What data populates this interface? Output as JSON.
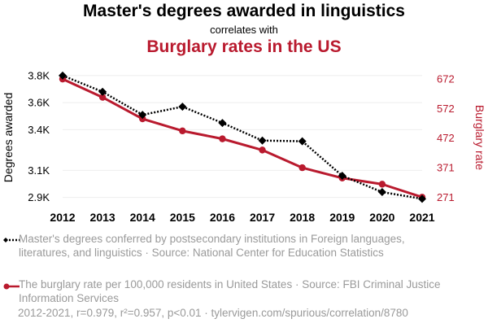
{
  "header": {
    "title": "Master's degrees awarded in linguistics",
    "subtitle": "correlates with",
    "title2": "Burglary rates in the US"
  },
  "colors": {
    "series1": "#000000",
    "series2": "#b91a2e",
    "grid": "#eeeeee",
    "legend_text": "#9a9a9a"
  },
  "chart_data": {
    "type": "line",
    "title": "Master's degrees awarded in linguistics",
    "subtitle": "correlates with",
    "title2": "Burglary rates in the US",
    "x": [
      2012,
      2013,
      2014,
      2015,
      2016,
      2017,
      2018,
      2019,
      2020,
      2021
    ],
    "xticks": [
      "2012",
      "2013",
      "2014",
      "2015",
      "2016",
      "2017",
      "2018",
      "2019",
      "2020",
      "2021"
    ],
    "ylabel_left": "Degrees awarded",
    "ylabel_right": "Burglary rate",
    "ylim_left": [
      2850,
      3835
    ],
    "ylim_right": [
      247,
      700
    ],
    "left_ticks": [
      {
        "value": 3800,
        "label": "3.8K"
      },
      {
        "value": 3600,
        "label": "3.6K"
      },
      {
        "value": 3400,
        "label": "3.4K"
      },
      {
        "value": 3100,
        "label": "3.1K"
      },
      {
        "value": 2900,
        "label": "2.9K"
      }
    ],
    "right_ticks": [
      {
        "value": 672,
        "label": "672"
      },
      {
        "value": 572,
        "label": "572"
      },
      {
        "value": 472,
        "label": "472"
      },
      {
        "value": 371,
        "label": "371"
      },
      {
        "value": 271,
        "label": "271"
      }
    ],
    "series": [
      {
        "name": "Master's degrees conferred by postsecondary institutions in Foreign languages, literatures, and linguistics",
        "axis": "left",
        "style": "dotted",
        "marker": "diamond",
        "values": [
          3800,
          3680,
          3510,
          3570,
          3450,
          3320,
          3315,
          3060,
          2940,
          2890
        ]
      },
      {
        "name": "The burglary rate per 100,000 residents in United States",
        "axis": "right",
        "style": "solid",
        "marker": "circle",
        "values": [
          672,
          610,
          537,
          496,
          469,
          431,
          371,
          336,
          315,
          271
        ]
      }
    ]
  },
  "legend": [
    {
      "text": "Master's degrees conferred by postsecondary institutions in Foreign languages, literatures, and linguistics · Source: National Center for Education Statistics"
    },
    {
      "text": "The burglary rate per 100,000 residents in United States · Source: FBI Criminal Justice Information Services"
    }
  ],
  "footer": {
    "text": "2012-2021, r=0.979, r²=0.957, p<0.01 · tylervigen.com/spurious/correlation/8780"
  }
}
